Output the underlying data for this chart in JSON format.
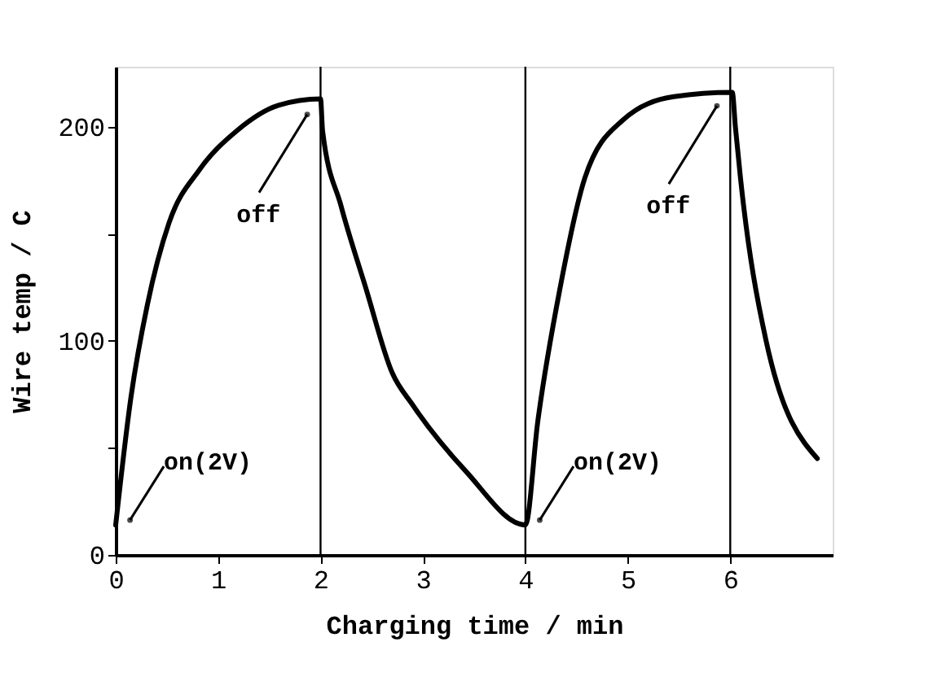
{
  "chart_data": {
    "type": "line",
    "xlabel": "Charging time / min",
    "ylabel": "Wire temp / C",
    "x": [
      0,
      0.15,
      0.31,
      0.52,
      0.82,
      1.18,
      1.59,
      2.0,
      2.02,
      2.2,
      2.44,
      2.7,
      2.9,
      3.42,
      4.0,
      4.12,
      4.34,
      4.58,
      4.95,
      5.45,
      6.02,
      6.05,
      6.1,
      6.35,
      6.85
    ],
    "series": [
      {
        "color": "#000000",
        "values": [
          14,
          74,
          117,
          155,
          180,
          198,
          210,
          213,
          198,
          163,
          125,
          85,
          70,
          39,
          14,
          62,
          125,
          176,
          203,
          214,
          216,
          200,
          176,
          100,
          45
        ]
      }
    ],
    "xlim": [
      0,
      7
    ],
    "xticks": [
      0,
      1,
      2,
      3,
      4,
      5,
      6
    ],
    "ylim": [
      0,
      228
    ],
    "yticks": [
      0,
      {
        "value": 50,
        "label": null
      },
      100,
      {
        "value": 150,
        "label": null
      },
      200
    ],
    "ref_lines": [
      {
        "axis": "x",
        "value": 2,
        "color": "#000000"
      },
      {
        "axis": "x",
        "value": 4,
        "color": "#000000"
      },
      {
        "axis": "x",
        "value": 6,
        "color": "#000000"
      }
    ],
    "annotations": [
      {
        "text": "on(2V)",
        "x": 0.02,
        "y": 14
      },
      {
        "text": "off",
        "x": 1.9,
        "y": 208
      },
      {
        "text": "on(2V)",
        "x": 4.02,
        "y": 14
      },
      {
        "text": "off",
        "x": 5.9,
        "y": 212
      }
    ],
    "marker": "none",
    "line_style": "solid",
    "grid": false
  }
}
